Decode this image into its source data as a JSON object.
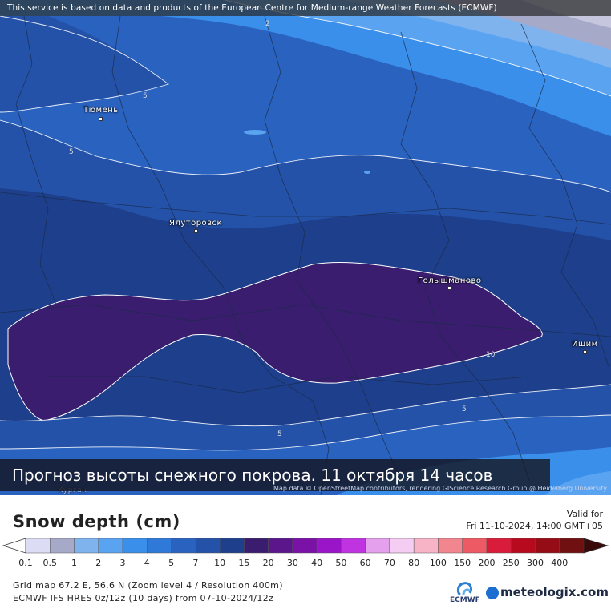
{
  "top_notice": "This service is based on data and products of the European Centre for Medium-range Weather Forecasts (ECMWF)",
  "cities": [
    {
      "name": "Тюмень"
    },
    {
      "name": "Ялуторовск"
    },
    {
      "name": "Голышманово"
    },
    {
      "name": "Ишим"
    },
    {
      "name": "Курган"
    }
  ],
  "contour_labels": [
    "2",
    "5",
    "5",
    "10",
    "5",
    "5"
  ],
  "caption": "Прогноз высоты снежного покрова. 11 октября 14 часов",
  "attribution": "Map data © OpenStreetMap contributors, rendering GIScience Research Group @ Heidelberg University",
  "legend": {
    "title": "Snow depth (cm)",
    "valid_label": "Valid for",
    "valid_time": "Fri 11-10-2024, 14:00 GMT+05",
    "ticks": [
      "0.1",
      "0.5",
      "1",
      "2",
      "3",
      "4",
      "5",
      "7",
      "10",
      "15",
      "20",
      "30",
      "40",
      "50",
      "60",
      "70",
      "80",
      "100",
      "150",
      "200",
      "250",
      "300",
      "400"
    ],
    "colors": [
      "#dcdcf4",
      "#a7a9c9",
      "#7eb3ee",
      "#5aa3f0",
      "#3a8fea",
      "#2f79d8",
      "#2a62c0",
      "#2452a8",
      "#1d3f8c",
      "#3a1d6e",
      "#5a168a",
      "#7a12a8",
      "#9a14c8",
      "#c033e0",
      "#e4a0ec",
      "#f5cdf2",
      "#f6b4c6",
      "#f2868e",
      "#ee5a64",
      "#d81c3a",
      "#b80a1e",
      "#960c16",
      "#701010"
    ],
    "grid_info": "Grid map 67.2 E, 56.6 N (Zoom level 4 / Resolution 400m)",
    "model_info": "ECMWF IFS HRES 0z/12z (10 days) from 07-10-2024/12z",
    "ecmwf_logo_text": "ECMWF",
    "brand": "meteologix.com"
  }
}
